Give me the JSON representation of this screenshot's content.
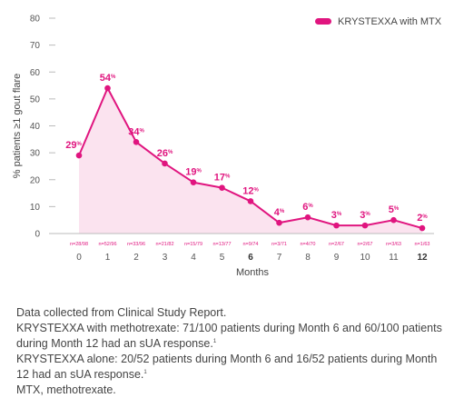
{
  "chart_data": {
    "type": "area",
    "xlabel": "Months",
    "ylabel": "% patients ≥1 gout flare",
    "ylim": [
      0,
      80
    ],
    "yticks": [
      0,
      10,
      20,
      30,
      40,
      50,
      60,
      70,
      80
    ],
    "grid": false,
    "legend_position": "top-right",
    "x": [
      0,
      1,
      2,
      3,
      4,
      5,
      6,
      7,
      8,
      9,
      10,
      11,
      12
    ],
    "x_tick_labels": [
      "0",
      "1",
      "2",
      "3",
      "4",
      "5",
      "6",
      "7",
      "8",
      "9",
      "10",
      "11",
      "12"
    ],
    "bold_x_ticks": [
      6,
      12
    ],
    "n_labels": [
      "n=28/98",
      "n=52/96",
      "n=33/96",
      "n=21/82",
      "n=15/79",
      "n=13/77",
      "n=9/74",
      "n=3/71",
      "n=4/70",
      "n=2/67",
      "n=2/67",
      "n=3/63",
      "n=1/63"
    ],
    "series": [
      {
        "name": "KRYSTEXXA with MTX",
        "values": [
          29,
          54,
          34,
          26,
          19,
          17,
          12,
          4,
          6,
          3,
          3,
          5,
          2
        ],
        "labels": [
          "29",
          "54",
          "34",
          "26",
          "19",
          "17",
          "12",
          "4",
          "6",
          "3",
          "3",
          "5",
          "2"
        ],
        "label_suffix": "%",
        "color": "#e0157f",
        "fill_color": "#fbe3ef"
      }
    ]
  },
  "footnote": {
    "line1": "Data collected from Clinical Study Report.",
    "line2_text": "KRYSTEXXA with methotrexate: 71/100 patients during Month 6 and 60/100 patients during Month 12 had an sUA response.",
    "line2_sup": "1",
    "line3_text": "KRYSTEXXA alone: 20/52 patients during Month 6 and 16/52 patients during Month 12 had an sUA response.",
    "line3_sup": "1",
    "line4": "MTX, methotrexate."
  }
}
